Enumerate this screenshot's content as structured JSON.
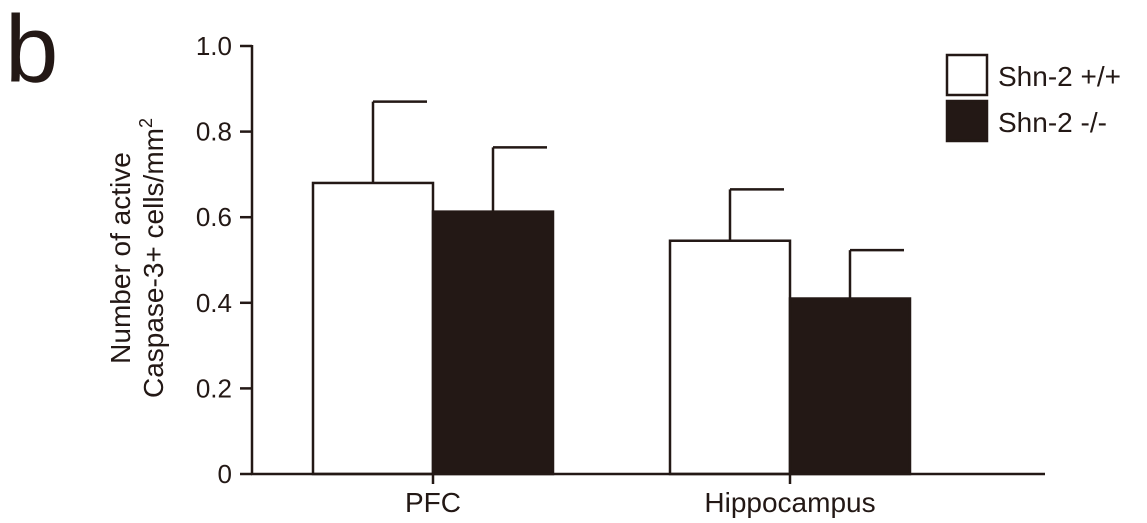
{
  "panel_label": "b",
  "colors": {
    "ink": "#231815",
    "series1_fill": "#ffffff",
    "series2_fill": "#231815"
  },
  "chart_data": {
    "type": "bar",
    "title": "",
    "xlabel": "",
    "ylabel_line1": "Number of active",
    "ylabel_line2": "Caspase-3+ cells/mm",
    "ylabel_superscript": "2",
    "ylim": [
      0,
      1.0
    ],
    "yticks": [
      "0",
      "0.2",
      "0.4",
      "0.6",
      "0.8",
      "1.0"
    ],
    "categories": [
      "PFC",
      "Hippocampus"
    ],
    "series": [
      {
        "name": "Shn-2 +/+",
        "values": [
          0.68,
          0.545
        ],
        "errors": [
          0.19,
          0.12
        ],
        "fill": "#ffffff"
      },
      {
        "name": "Shn-2 -/-",
        "values": [
          0.613,
          0.41
        ],
        "errors": [
          0.15,
          0.113
        ],
        "fill": "#231815"
      }
    ],
    "legend_position": "top-right",
    "grid": false
  }
}
